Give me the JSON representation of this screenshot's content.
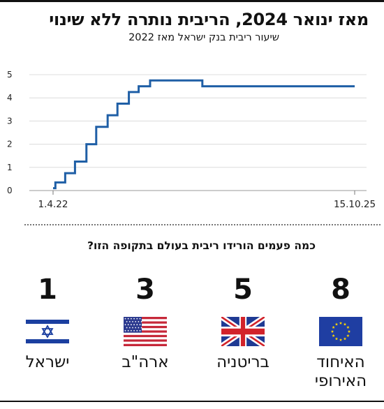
{
  "header": {
    "title": "מאז ינואר 2024, הריבית נותרה ללא שינוי",
    "subtitle": "שיעור ריבית בנק ישראל מאז 2022"
  },
  "chart_data": {
    "type": "line",
    "title": "מאז ינואר 2024, הריבית נותרה ללא שינוי",
    "subtitle": "שיעור ריבית בנק ישראל מאז 2022",
    "step": true,
    "x_tick_labels": [
      "1.4.22",
      "15.10.25"
    ],
    "y_ticks": [
      0,
      1,
      2,
      3,
      4,
      5
    ],
    "ylim": [
      0,
      5
    ],
    "grid": true,
    "line_color": "#1f5fa6",
    "points": [
      {
        "x": "2022-04-01",
        "y": 0.1
      },
      {
        "x": "2022-04-11",
        "y": 0.35
      },
      {
        "x": "2022-05-23",
        "y": 0.75
      },
      {
        "x": "2022-07-04",
        "y": 1.25
      },
      {
        "x": "2022-08-22",
        "y": 2.0
      },
      {
        "x": "2022-10-03",
        "y": 2.75
      },
      {
        "x": "2022-11-21",
        "y": 3.25
      },
      {
        "x": "2023-01-02",
        "y": 3.75
      },
      {
        "x": "2023-02-20",
        "y": 4.25
      },
      {
        "x": "2023-04-03",
        "y": 4.5
      },
      {
        "x": "2023-05-22",
        "y": 4.75
      },
      {
        "x": "2024-01-01",
        "y": 4.5
      },
      {
        "x": "2025-10-15",
        "y": 4.5
      }
    ]
  },
  "question": "כמה פעמים הורידו ריבית בעולם בתקופה הזו?",
  "countries": [
    {
      "id": "israel",
      "count": "1",
      "name": "ישראל",
      "flag": "israel-flag"
    },
    {
      "id": "usa",
      "count": "3",
      "name": "ארה\"ב",
      "flag": "usa-flag"
    },
    {
      "id": "uk",
      "count": "5",
      "name": "בריטניה",
      "flag": "uk-flag"
    },
    {
      "id": "eu",
      "count": "8",
      "name": "האיחוד האירופי",
      "flag": "eu-flag"
    }
  ],
  "colors": {
    "line": "#1f5fa6",
    "israel_blue": "#1b3fa0",
    "usa_red": "#c62839",
    "usa_blue": "#2c3a8f",
    "uk_blue": "#1f3a93",
    "uk_red": "#d2232a",
    "eu_blue": "#1f3ea2",
    "eu_star": "#ffd700"
  }
}
